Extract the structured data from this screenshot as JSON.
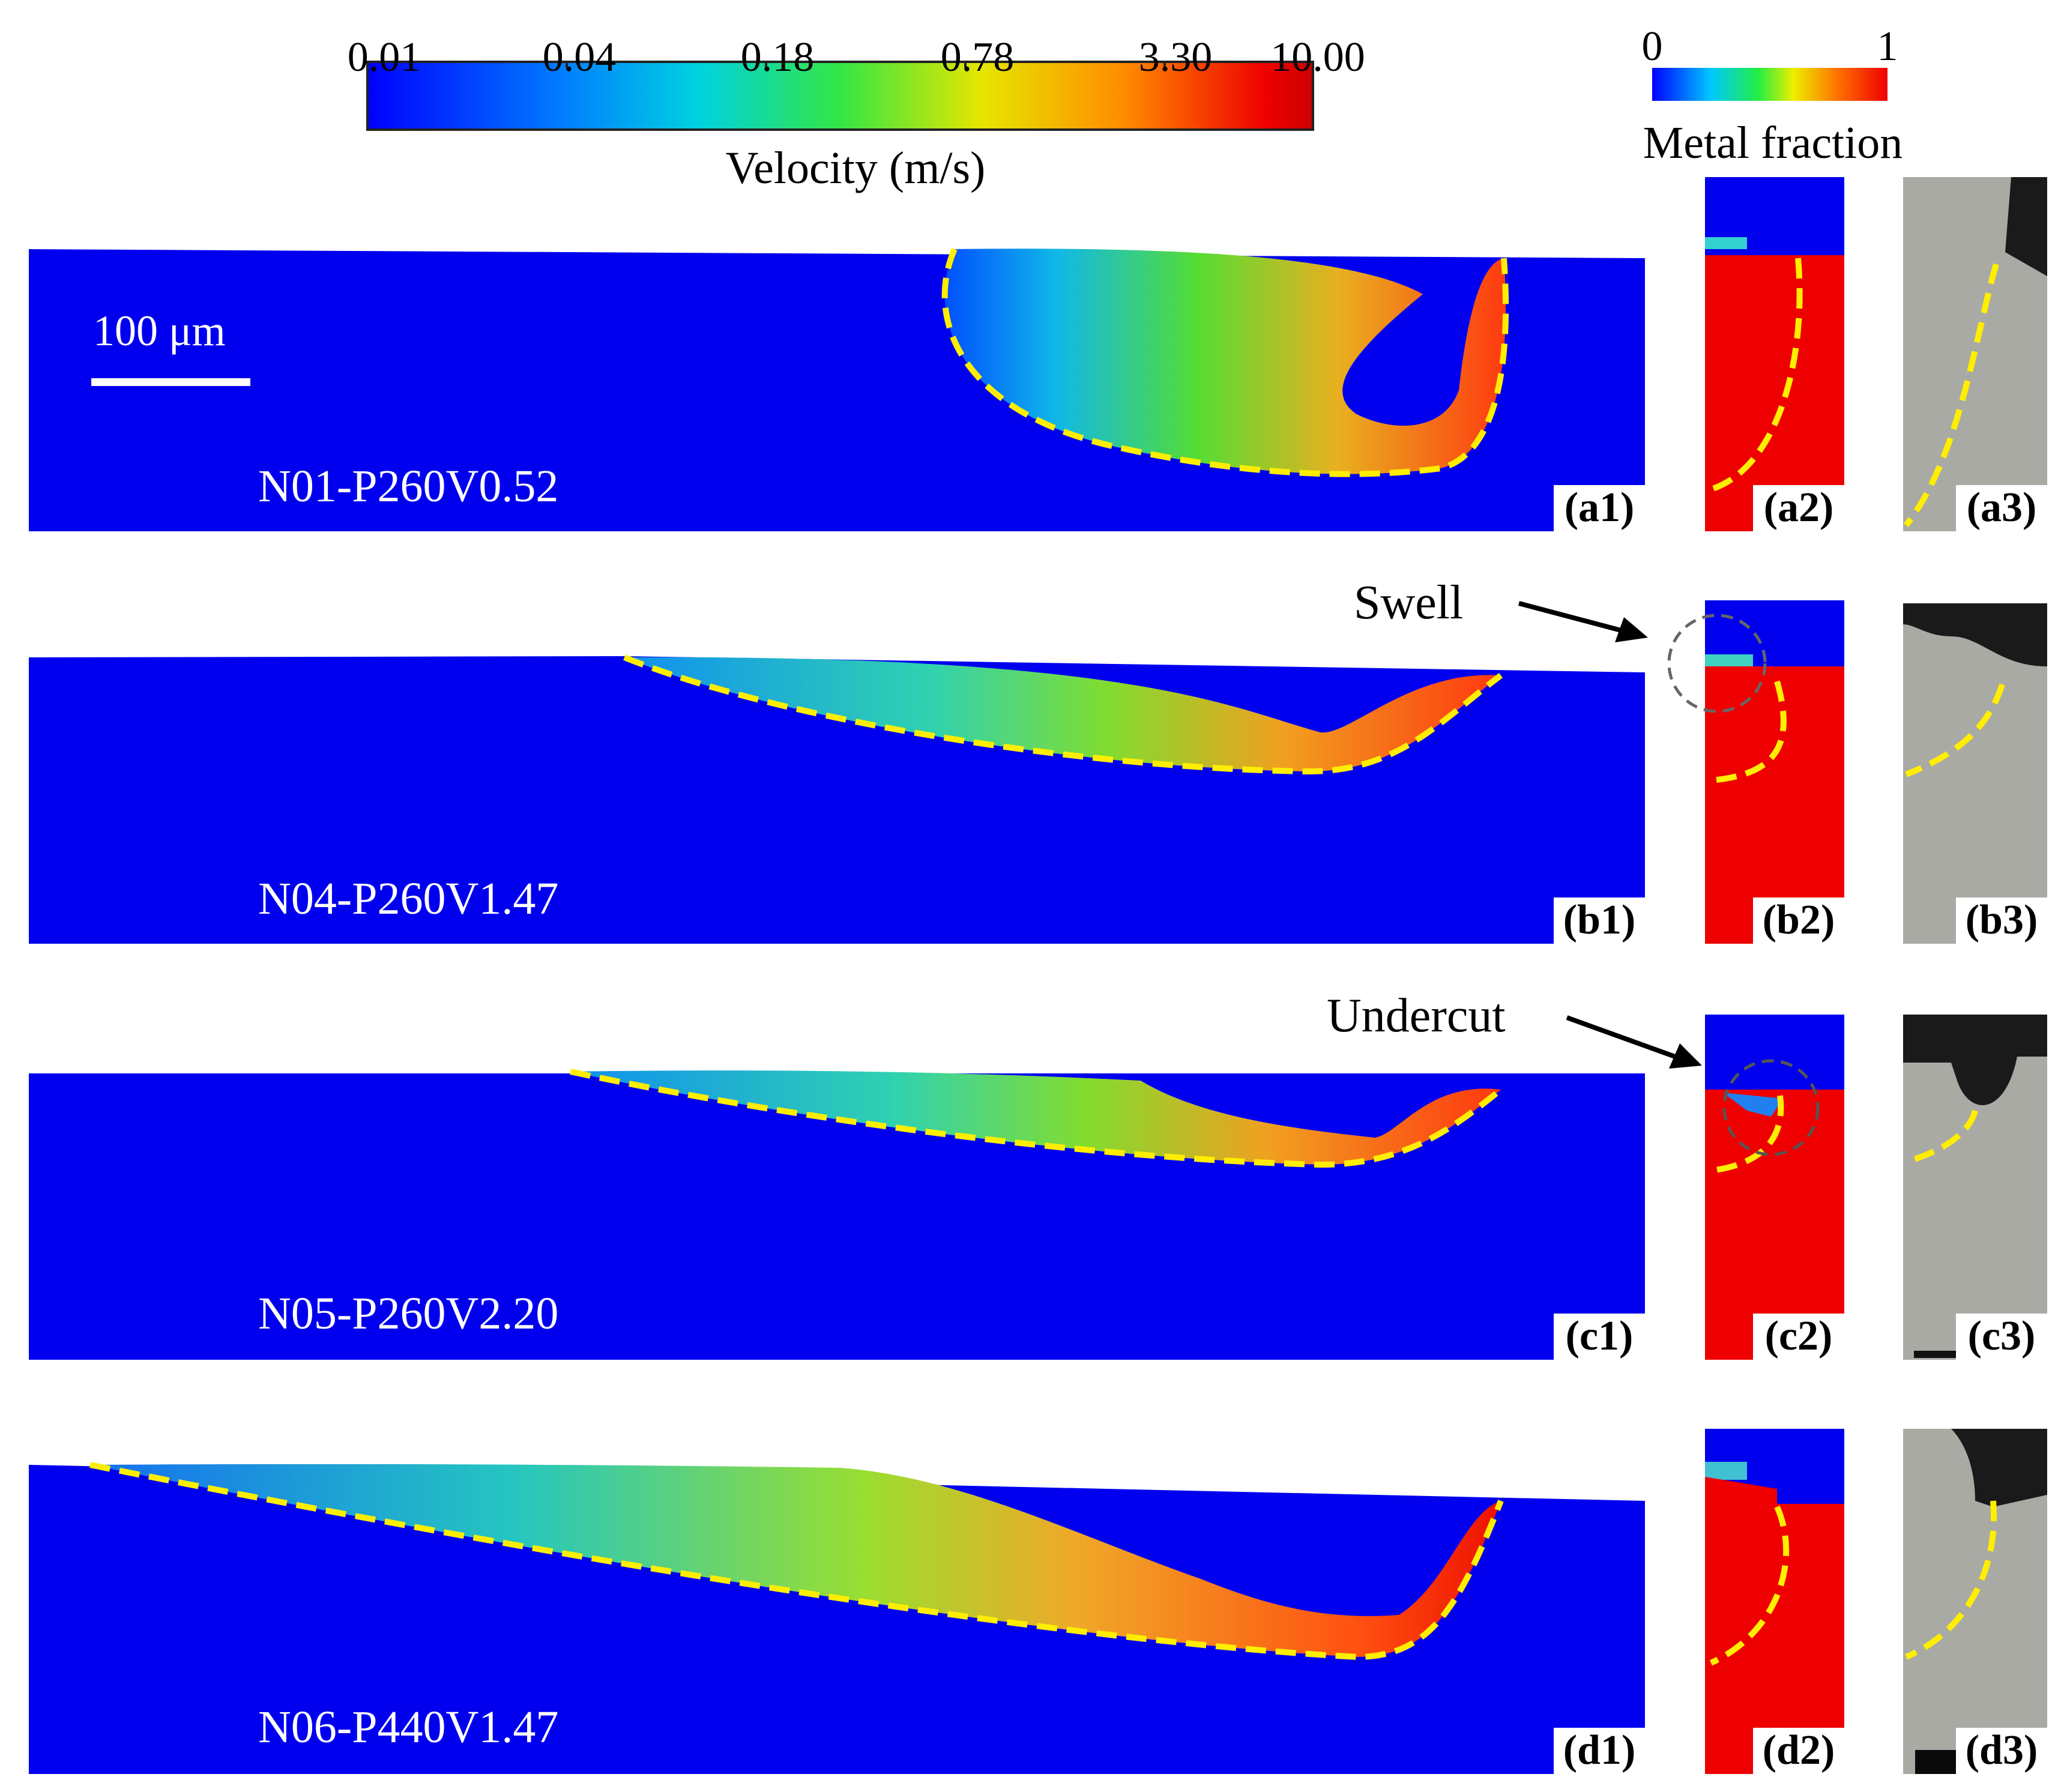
{
  "velocity_colorbar": {
    "ticks": [
      "0.01",
      "0.04",
      "0.18",
      "0.78",
      "3.30",
      "10.00"
    ],
    "label": "Velocity (m/s)"
  },
  "metal_colorbar": {
    "min_label": "0",
    "max_label": "1",
    "label": "Metal fraction"
  },
  "scale_bar": {
    "label": "100 μm"
  },
  "annotations": {
    "swell": "Swell",
    "undercut": "Undercut"
  },
  "rows": [
    {
      "case": "N01-P260V0.52",
      "panels": [
        "(a1)",
        "(a2)",
        "(a3)"
      ]
    },
    {
      "case": "N04-P260V1.47",
      "panels": [
        "(b1)",
        "(b2)",
        "(b3)"
      ]
    },
    {
      "case": "N05-P260V2.20",
      "panels": [
        "(c1)",
        "(c2)",
        "(c3)"
      ]
    },
    {
      "case": "N06-P440V1.47",
      "panels": [
        "(d1)",
        "(d2)",
        "(d3)"
      ]
    }
  ],
  "colors": {
    "substrate": "#0000ee",
    "metal": "#ee0000",
    "boundary": "#ffee00",
    "micrograph": "#a9aaa4"
  }
}
